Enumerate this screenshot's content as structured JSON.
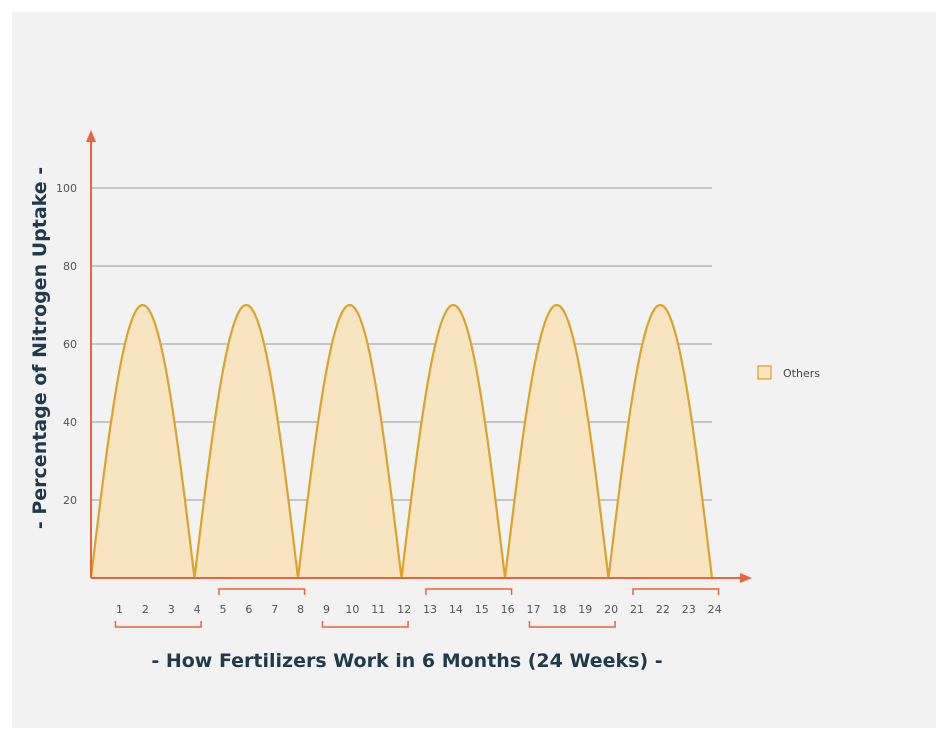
{
  "chart_data": {
    "type": "area",
    "title": "",
    "xlabel": "- How Fertilizers Work in 6 Months (24 Weeks) -",
    "ylabel": "- Percentage of Nitrogen Uptake -",
    "ylim": [
      0,
      110
    ],
    "yticks": [
      20,
      40,
      60,
      80,
      100
    ],
    "xlim": [
      0,
      24
    ],
    "x_tick_labels": [
      "1",
      "2",
      "3",
      "4",
      "5",
      "6",
      "7",
      "8",
      "9",
      "10",
      "11",
      "12",
      "13",
      "14",
      "15",
      "16",
      "17",
      "18",
      "19",
      "20",
      "21",
      "22",
      "23",
      "24"
    ],
    "month_groups": [
      [
        1,
        4
      ],
      [
        5,
        8
      ],
      [
        9,
        12
      ],
      [
        13,
        16
      ],
      [
        17,
        20
      ],
      [
        21,
        24
      ]
    ],
    "grid": true,
    "legend_position": "right",
    "series": [
      {
        "name": "Others",
        "cycle_length_weeks": 4,
        "peak_value": 70,
        "cycles": 6,
        "fill_color": "#f8e4c0",
        "line_color": "#dba32b"
      }
    ],
    "axis_color": "#e8643a",
    "grid_color": "#999999",
    "bracket_color": "#e8643a"
  }
}
